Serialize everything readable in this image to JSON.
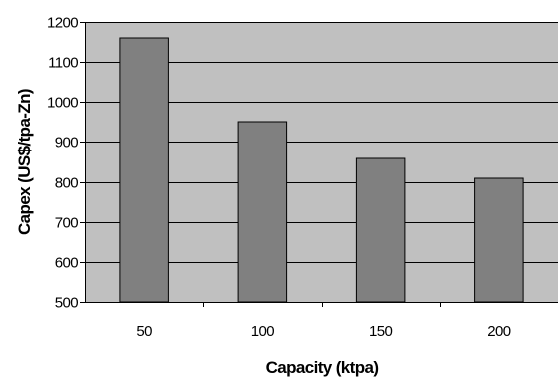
{
  "chart_data": {
    "type": "bar",
    "title": "",
    "xlabel": "Capacity (ktpa)",
    "ylabel": "Capex (US$/tpa-Zn)",
    "categories": [
      "50",
      "100",
      "150",
      "200"
    ],
    "values": [
      1160,
      950,
      860,
      810
    ],
    "ylim": [
      500,
      1200
    ],
    "yticks": [
      500,
      600,
      700,
      800,
      900,
      1000,
      1100,
      1200
    ],
    "grid": true,
    "legend": "none",
    "colors": {
      "plot_background": "#c0c0c0",
      "bar_fill": "#808080",
      "bar_stroke": "#000000",
      "gridline": "#000000"
    }
  }
}
